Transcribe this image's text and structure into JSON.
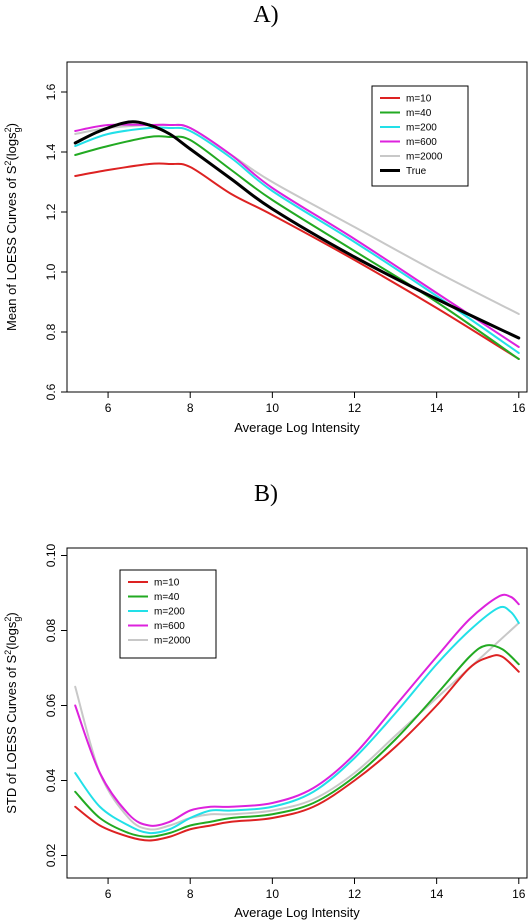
{
  "chart_data": [
    {
      "type": "line",
      "panel_label": "A)",
      "xlabel": "Average Log Intensity",
      "ylabel_prefix": "Mean of LOESS Curves of S",
      "ylabel_sup": "2",
      "ylabel_paren_open": "(logs",
      "ylabel_sup2": "2",
      "ylabel_sub": "g",
      "ylabel_paren_close": ")",
      "xlim": [
        5,
        16.2
      ],
      "ylim": [
        0.6,
        1.7
      ],
      "xticks": [
        6,
        8,
        10,
        12,
        14,
        16
      ],
      "yticks": [
        0.6,
        0.8,
        1.0,
        1.2,
        1.4,
        1.6
      ],
      "ytick_labels": [
        "0.6",
        "0.8",
        "1.0",
        "1.2",
        "1.4",
        "1.6"
      ],
      "legend_position": "top-right",
      "grid": false,
      "series": [
        {
          "name": "m=10",
          "color": "#dd2222",
          "x": [
            5.2,
            6.0,
            7.0,
            7.5,
            8.0,
            9.0,
            10.0,
            12.0,
            14.0,
            16.0
          ],
          "y": [
            1.32,
            1.34,
            1.36,
            1.36,
            1.35,
            1.26,
            1.19,
            1.04,
            0.88,
            0.71
          ]
        },
        {
          "name": "m=40",
          "color": "#22aa22",
          "x": [
            5.2,
            6.0,
            7.0,
            7.5,
            8.0,
            9.0,
            10.0,
            12.0,
            14.0,
            16.0
          ],
          "y": [
            1.39,
            1.42,
            1.45,
            1.45,
            1.44,
            1.34,
            1.24,
            1.07,
            0.9,
            0.71
          ]
        },
        {
          "name": "m=200",
          "color": "#22e0e8",
          "x": [
            5.2,
            6.0,
            7.0,
            7.5,
            8.0,
            9.0,
            10.0,
            12.0,
            14.0,
            16.0
          ],
          "y": [
            1.42,
            1.46,
            1.48,
            1.48,
            1.47,
            1.38,
            1.27,
            1.1,
            0.92,
            0.73
          ]
        },
        {
          "name": "m=600",
          "color": "#dd22dd",
          "x": [
            5.2,
            6.0,
            7.0,
            7.5,
            8.0,
            9.0,
            10.0,
            12.0,
            14.0,
            16.0
          ],
          "y": [
            1.47,
            1.49,
            1.49,
            1.49,
            1.48,
            1.39,
            1.28,
            1.11,
            0.93,
            0.75
          ]
        },
        {
          "name": "m=2000",
          "color": "#c8c8c8",
          "x": [
            5.2,
            6.0,
            7.0,
            7.5,
            8.0,
            9.0,
            10.0,
            12.0,
            14.0,
            16.0
          ],
          "y": [
            1.46,
            1.48,
            1.49,
            1.49,
            1.48,
            1.39,
            1.3,
            1.15,
            1.0,
            0.86
          ]
        },
        {
          "name": "True",
          "color": "#000000",
          "width": 3,
          "x": [
            5.2,
            5.8,
            6.5,
            7.0,
            7.5,
            8.0,
            9.0,
            10.0,
            12.0,
            14.0,
            16.0
          ],
          "y": [
            1.43,
            1.47,
            1.5,
            1.49,
            1.46,
            1.41,
            1.31,
            1.21,
            1.05,
            0.91,
            0.78
          ]
        }
      ]
    },
    {
      "type": "line",
      "panel_label": "B)",
      "xlabel": "Average Log Intensity",
      "ylabel_prefix": "STD of LOESS Curves of S",
      "ylabel_sup": "2",
      "ylabel_paren_open": "(logs",
      "ylabel_sup2": "2",
      "ylabel_sub": "g",
      "ylabel_paren_close": ")",
      "xlim": [
        5,
        16.2
      ],
      "ylim": [
        0.014,
        0.102
      ],
      "xticks": [
        6,
        8,
        10,
        12,
        14,
        16
      ],
      "yticks": [
        0.02,
        0.04,
        0.06,
        0.08,
        0.1
      ],
      "ytick_labels": [
        "0.02",
        "0.04",
        "0.06",
        "0.08",
        "0.10"
      ],
      "legend_position": "top-left",
      "grid": false,
      "series": [
        {
          "name": "m=10",
          "color": "#dd2222",
          "x": [
            5.2,
            5.8,
            6.5,
            7.0,
            7.5,
            8.0,
            8.5,
            9.0,
            10.0,
            11.0,
            12.0,
            13.0,
            14.0,
            14.8,
            15.3,
            15.6,
            16.0
          ],
          "y": [
            0.033,
            0.028,
            0.025,
            0.024,
            0.025,
            0.027,
            0.028,
            0.029,
            0.03,
            0.033,
            0.04,
            0.049,
            0.06,
            0.07,
            0.073,
            0.073,
            0.069
          ]
        },
        {
          "name": "m=40",
          "color": "#22aa22",
          "x": [
            5.2,
            5.8,
            6.5,
            7.0,
            7.5,
            8.0,
            8.5,
            9.0,
            10.0,
            11.0,
            12.0,
            13.0,
            14.0,
            14.8,
            15.2,
            15.6,
            16.0
          ],
          "y": [
            0.037,
            0.03,
            0.026,
            0.025,
            0.026,
            0.028,
            0.029,
            0.03,
            0.031,
            0.034,
            0.041,
            0.051,
            0.063,
            0.073,
            0.076,
            0.075,
            0.071
          ]
        },
        {
          "name": "m=200",
          "color": "#22e0e8",
          "x": [
            5.2,
            5.8,
            6.5,
            7.0,
            7.5,
            8.0,
            8.5,
            9.0,
            10.0,
            11.0,
            12.0,
            13.0,
            14.0,
            14.8,
            15.5,
            15.8,
            16.0
          ],
          "y": [
            0.042,
            0.033,
            0.028,
            0.026,
            0.027,
            0.03,
            0.032,
            0.032,
            0.033,
            0.037,
            0.046,
            0.058,
            0.071,
            0.08,
            0.086,
            0.085,
            0.082
          ]
        },
        {
          "name": "m=600",
          "color": "#dd22dd",
          "x": [
            5.2,
            5.8,
            6.5,
            7.0,
            7.5,
            8.0,
            8.5,
            9.0,
            10.0,
            11.0,
            12.0,
            13.0,
            14.0,
            14.8,
            15.5,
            15.8,
            16.0
          ],
          "y": [
            0.06,
            0.042,
            0.031,
            0.028,
            0.029,
            0.032,
            0.033,
            0.033,
            0.034,
            0.038,
            0.047,
            0.06,
            0.073,
            0.083,
            0.089,
            0.089,
            0.087
          ]
        },
        {
          "name": "m=2000",
          "color": "#c8c8c8",
          "x": [
            5.2,
            5.8,
            6.5,
            7.0,
            7.5,
            8.0,
            8.5,
            9.0,
            10.0,
            11.0,
            12.0,
            13.0,
            14.0,
            15.0,
            15.5,
            16.0
          ],
          "y": [
            0.065,
            0.042,
            0.03,
            0.027,
            0.028,
            0.03,
            0.031,
            0.031,
            0.032,
            0.035,
            0.042,
            0.052,
            0.062,
            0.072,
            0.077,
            0.082
          ]
        }
      ]
    }
  ]
}
